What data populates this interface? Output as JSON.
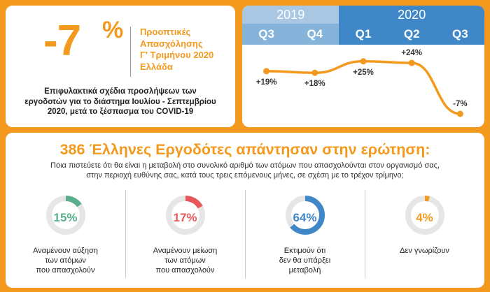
{
  "headline": {
    "value": "-7",
    "unit": "%",
    "title_lines": [
      "Προοπτικές",
      "Απασχόλησης",
      "Γ' Τριμήνου 2020",
      "Ελλάδα"
    ],
    "description_lines": [
      "Επιφυλακτικά σχέδια προσλήψεων των",
      "εργοδοτών για το διάστημα Ιουλίου - Σεπτεμβρίου",
      "2020, μετά το ξέσπασμα του COVID-19"
    ]
  },
  "chart_data": {
    "type": "line",
    "years": [
      {
        "label": "2019",
        "quarters": 2
      },
      {
        "label": "2020",
        "quarters": 3
      }
    ],
    "categories": [
      "Q3",
      "Q4",
      "Q1",
      "Q2",
      "Q3"
    ],
    "values": [
      19,
      18,
      25,
      24,
      -7
    ],
    "data_labels": [
      "+19%",
      "+18%",
      "+25%",
      "+24%",
      "-7%"
    ],
    "ylim": [
      -10,
      30
    ]
  },
  "survey": {
    "heading": "386 Έλληνες Εργοδότες απάντησαν στην ερώτηση:",
    "question_lines": [
      "Ποια πιστεύετε ότι θα είναι η μεταβολή στο συνολικό αριθμό των ατόμων που απασχολούνται στον οργανισμό σας,",
      "στην περιοχή ευθύνης σας, κατά τους τρεις επόμενους μήνες, σε σχέση με το τρέχον τρίμηνο;"
    ],
    "items": [
      {
        "value": 15,
        "label": "15%",
        "color": "#5BAE8C",
        "lines": [
          "Αναμένουν αύξηση",
          "των ατόμων",
          "που απασχολούν"
        ]
      },
      {
        "value": 17,
        "label": "17%",
        "color": "#E8585A",
        "lines": [
          "Αναμένουν μείωση",
          "των ατόμων",
          "που απασχολούν"
        ]
      },
      {
        "value": 64,
        "label": "64%",
        "color": "#3F87C6",
        "lines": [
          "Εκτιμούν ότι",
          "δεν θα υπάρξει",
          "μεταβολή"
        ]
      },
      {
        "value": 4,
        "label": "4%",
        "color": "#F39A1E",
        "lines": [
          "Δεν γνωρίζουν"
        ]
      }
    ]
  },
  "colors": {
    "background": "#F39A1E",
    "accent": "#F39A1E",
    "year_2019": "#A9C7E3",
    "year_2020": "#3F87C6",
    "quarter_2019": "#86B3DA",
    "quarter_2020": "#3F87C6",
    "donut_track": "#E6E6E6"
  }
}
